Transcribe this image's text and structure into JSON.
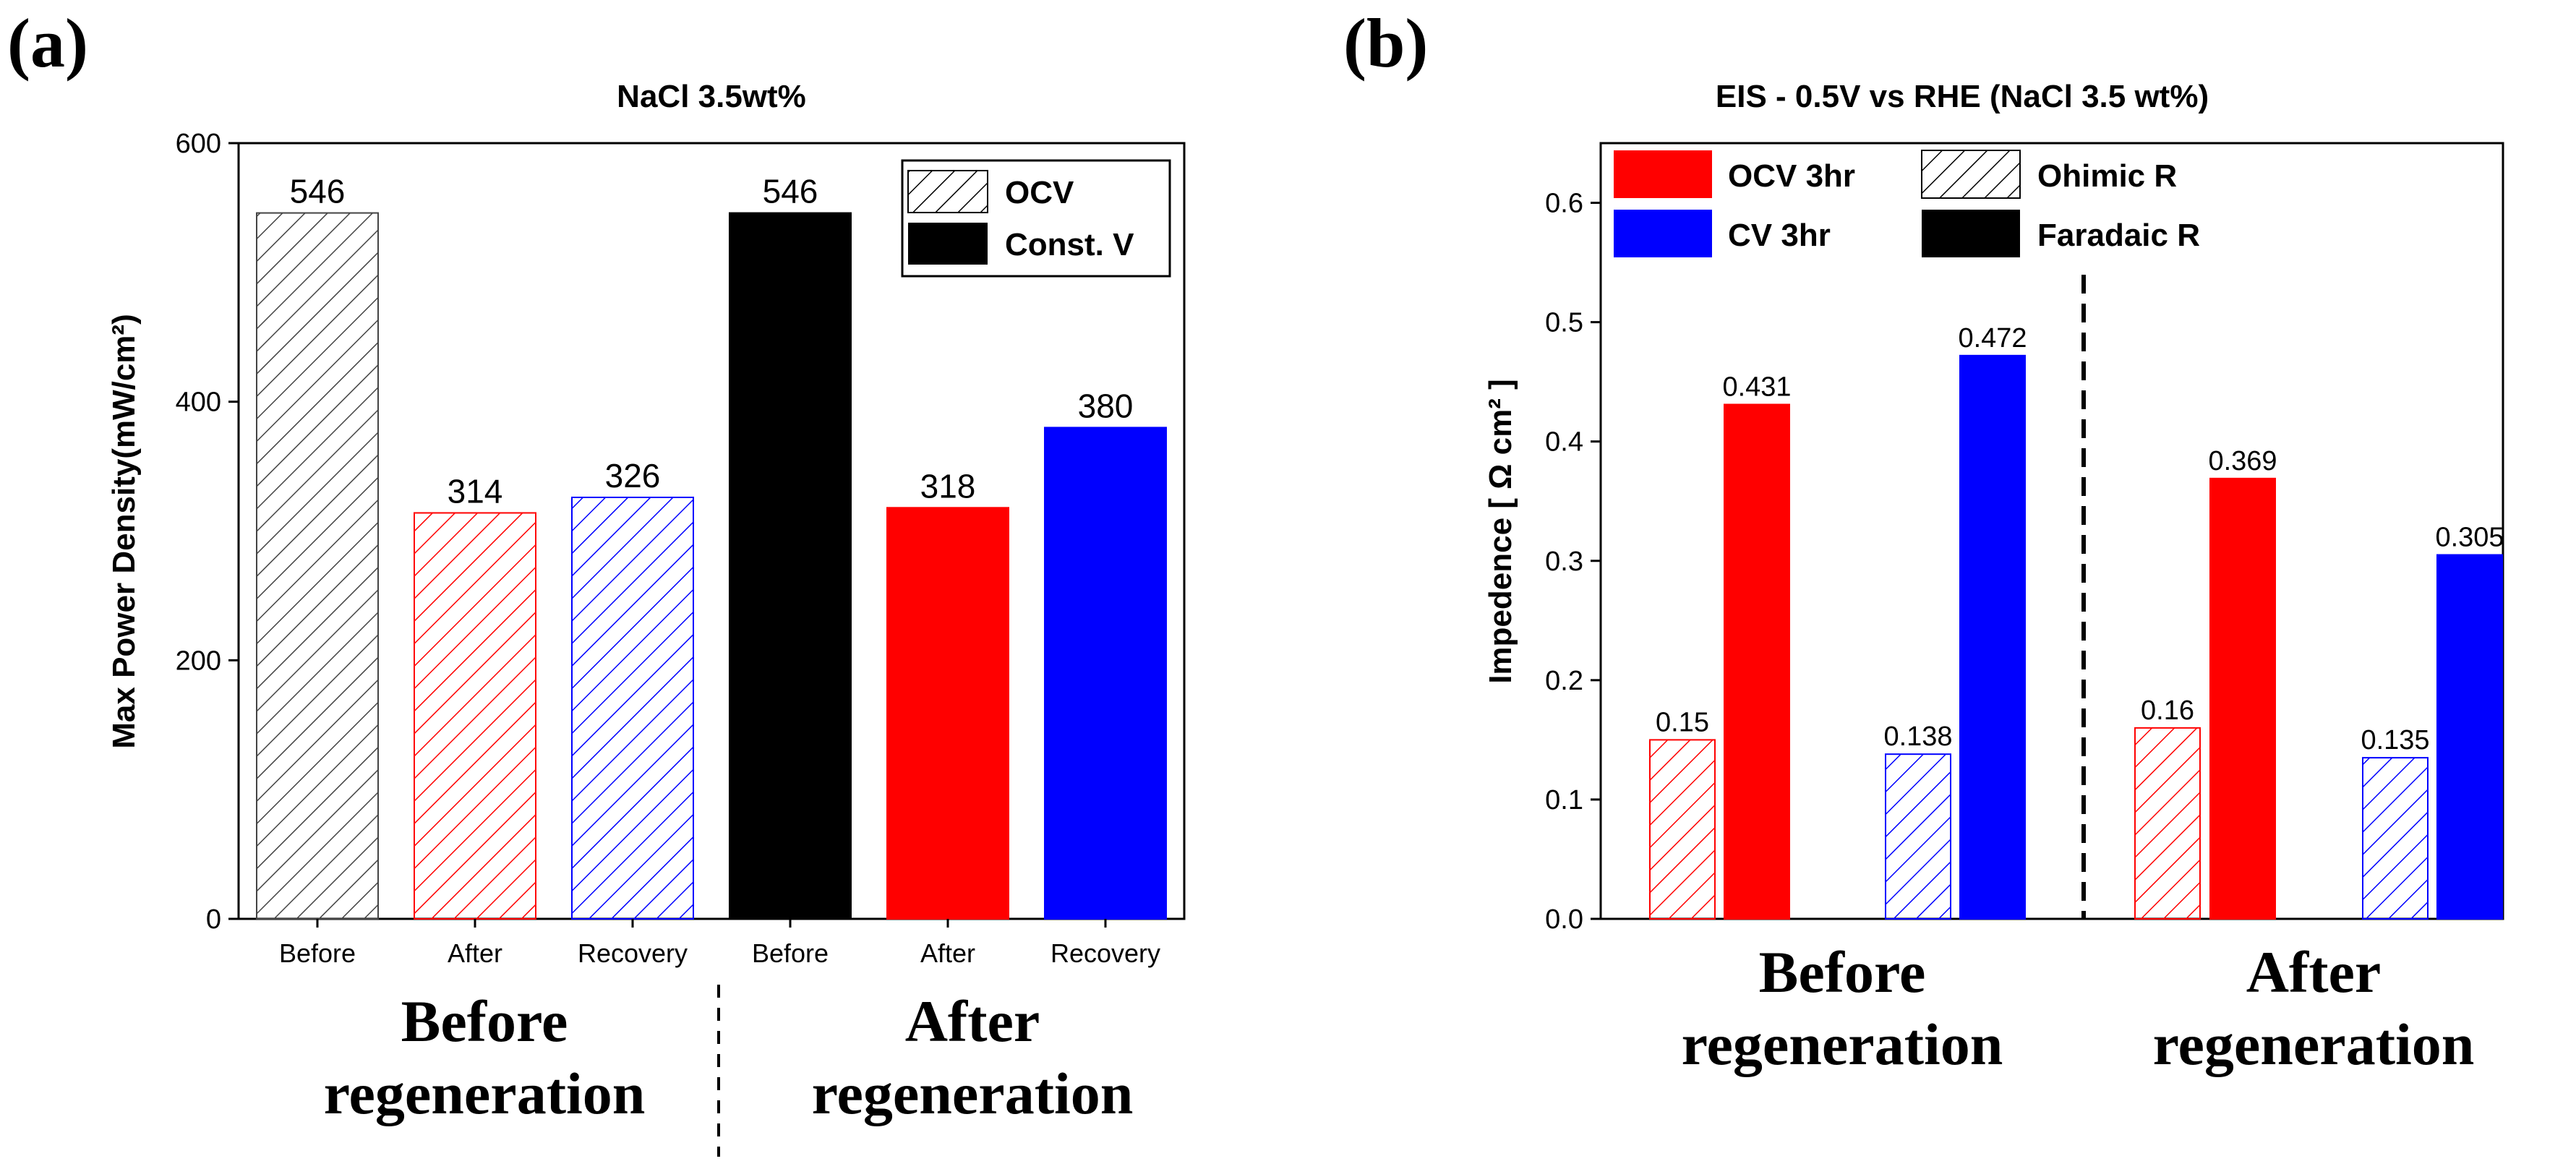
{
  "panels": [
    {
      "letter": "(a)",
      "colors": {
        "black": "#000000",
        "red": "#ff0000",
        "blue": "#0000ff",
        "hatch_gray": "#444444"
      }
    },
    {
      "letter": "(b)"
    }
  ],
  "chart_data": [
    {
      "type": "bar",
      "title": "NaCl 3.5wt%",
      "ylabel": "Max Power Density(mW/cm²)",
      "xlabel": "",
      "ylim": [
        0,
        600
      ],
      "yticks": [
        0,
        200,
        400,
        600
      ],
      "grid": false,
      "legend": {
        "position": "top-right",
        "entries": [
          {
            "label": "OCV",
            "style": "hatch",
            "color": "#000000"
          },
          {
            "label": "Const. V",
            "style": "solid",
            "color": "#000000"
          }
        ]
      },
      "categories": [
        "Before",
        "After",
        "Recovery",
        "Before",
        "After",
        "Recovery"
      ],
      "values": [
        546,
        314,
        326,
        546,
        318,
        380
      ],
      "bar_styles": [
        "hatch",
        "hatch",
        "hatch",
        "solid",
        "solid",
        "solid"
      ],
      "bar_colors": [
        "#444444",
        "#ff0000",
        "#0000ff",
        "#000000",
        "#ff0000",
        "#0000ff"
      ],
      "value_labels": [
        "546",
        "314",
        "326",
        "546",
        "318",
        "380"
      ],
      "groups": [
        {
          "line1": "Before",
          "line2": "regeneration"
        },
        {
          "line1": "After",
          "line2": "regeneration"
        }
      ]
    },
    {
      "type": "bar",
      "title": "EIS - 0.5V vs RHE (NaCl 3.5 wt%)",
      "ylabel": "Impedence [ Ω cm² ]",
      "xlabel": "",
      "ylim": [
        0,
        0.65
      ],
      "yticks": [
        "0.0",
        "0.1",
        "0.2",
        "0.3",
        "0.4",
        "0.5",
        "0.6"
      ],
      "grid": false,
      "legend": {
        "position": "top",
        "entries": [
          {
            "label": "OCV 3hr",
            "style": "solid",
            "color": "#ff0000"
          },
          {
            "label": "Ohimic R",
            "style": "hatch",
            "color": "#000000"
          },
          {
            "label": "CV 3hr",
            "style": "solid",
            "color": "#0000ff"
          },
          {
            "label": "Faradaic R",
            "style": "solid",
            "color": "#000000"
          }
        ]
      },
      "series": [
        {
          "name": "OCV 3hr Ohimic R",
          "style": "hatch",
          "color": "#ff0000",
          "values": [
            0.15,
            0.16
          ],
          "labels": [
            "0.15",
            "0.16"
          ]
        },
        {
          "name": "OCV 3hr Faradaic R",
          "style": "solid",
          "color": "#ff0000",
          "values": [
            0.431,
            0.369
          ],
          "labels": [
            "0.431",
            "0.369"
          ]
        },
        {
          "name": "CV 3hr Ohimic R",
          "style": "hatch",
          "color": "#0000ff",
          "values": [
            0.138,
            0.135
          ],
          "labels": [
            "0.138",
            "0.135"
          ]
        },
        {
          "name": "CV 3hr Faradaic R",
          "style": "solid",
          "color": "#0000ff",
          "values": [
            0.472,
            0.305
          ],
          "labels": [
            "0.472",
            "0.305"
          ]
        }
      ],
      "groups": [
        {
          "line1": "Before",
          "line2": "regeneration"
        },
        {
          "line1": "After",
          "line2": "regeneration"
        }
      ]
    }
  ]
}
